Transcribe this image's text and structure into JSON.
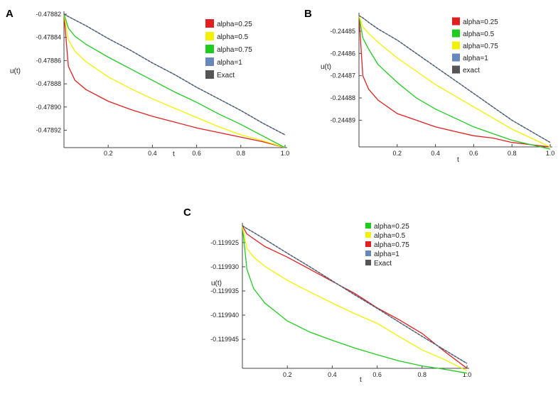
{
  "chart_data": [
    {
      "panel": "A",
      "type": "line",
      "title": "",
      "xlabel": "t",
      "ylabel": "u(t)",
      "xlim": [
        0,
        1.0
      ],
      "ylim": [
        -0.478935,
        -0.47882
      ],
      "x_ticks": [
        0.2,
        0.4,
        0.6,
        0.8,
        1.0
      ],
      "x_tick_labels": [
        "0.2",
        "0.4",
        "0.6",
        "0.8",
        "1.0"
      ],
      "y_ticks": [
        -0.47882,
        -0.47884,
        -0.47886,
        -0.47888,
        -0.4789,
        -0.47892
      ],
      "y_tick_labels": [
        "-0.47882",
        "-0.47884",
        "-0.47886",
        "-0.47888",
        "-0.47890",
        "-0.47892"
      ],
      "legend": {
        "position": "top-right"
      },
      "x": [
        0,
        0.02,
        0.05,
        0.1,
        0.2,
        0.3,
        0.4,
        0.5,
        0.6,
        0.7,
        0.8,
        0.9,
        1.0
      ],
      "series": [
        {
          "name": "alpha=0.25",
          "color": "#e02020",
          "values": [
            -0.47882,
            -0.478865,
            -0.478877,
            -0.478885,
            -0.478895,
            -0.478902,
            -0.478908,
            -0.478913,
            -0.478918,
            -0.478922,
            -0.478926,
            -0.47893,
            -0.478935
          ]
        },
        {
          "name": "alpha=0.5",
          "color": "#f2f200",
          "values": [
            -0.47882,
            -0.478842,
            -0.478852,
            -0.478861,
            -0.478874,
            -0.478884,
            -0.478893,
            -0.478901,
            -0.478909,
            -0.478917,
            -0.478924,
            -0.478929,
            -0.478935
          ]
        },
        {
          "name": "alpha=0.75",
          "color": "#20cc20",
          "values": [
            -0.47882,
            -0.478832,
            -0.478839,
            -0.478846,
            -0.478857,
            -0.478867,
            -0.478877,
            -0.478887,
            -0.478896,
            -0.478906,
            -0.478915,
            -0.478925,
            -0.478935
          ]
        },
        {
          "name": "alpha=1",
          "color": "#6688bb",
          "values": [
            -0.47882,
            -0.478822,
            -0.478825,
            -0.47883,
            -0.478841,
            -0.478851,
            -0.478862,
            -0.478872,
            -0.478883,
            -0.478893,
            -0.478903,
            -0.478914,
            -0.478924
          ]
        },
        {
          "name": "Exact",
          "color": "#555555",
          "values": [
            -0.47882,
            -0.478822,
            -0.478825,
            -0.47883,
            -0.478841,
            -0.478851,
            -0.478862,
            -0.478872,
            -0.478883,
            -0.478893,
            -0.478903,
            -0.478914,
            -0.478924
          ]
        }
      ]
    },
    {
      "panel": "B",
      "type": "line",
      "title": "",
      "xlabel": "t",
      "ylabel": "u(t)",
      "xlim": [
        0,
        1.0
      ],
      "ylim": [
        -0.244902,
        -0.244843
      ],
      "x_ticks": [
        0.2,
        0.4,
        0.6,
        0.8,
        1.0
      ],
      "x_tick_labels": [
        "0.2",
        "0.4",
        "0.6",
        "0.8",
        "1.0"
      ],
      "y_ticks": [
        -0.24485,
        -0.24486,
        -0.24487,
        -0.24488,
        -0.24489
      ],
      "y_tick_labels": [
        "-0.24485",
        "-0.24486",
        "-0.24487",
        "-0.24488",
        "-0.24489"
      ],
      "legend": {
        "position": "top-right"
      },
      "x": [
        0,
        0.02,
        0.05,
        0.1,
        0.2,
        0.3,
        0.4,
        0.5,
        0.6,
        0.7,
        0.8,
        0.9,
        1.0
      ],
      "series": [
        {
          "name": "alpha=0.25",
          "color": "#e02020",
          "values": [
            -0.244843,
            -0.24487,
            -0.244876,
            -0.244881,
            -0.244887,
            -0.24489,
            -0.244893,
            -0.244895,
            -0.244897,
            -0.244898,
            -0.2449,
            -0.244901,
            -0.244902
          ]
        },
        {
          "name": "alpha=0.5",
          "color": "#20cc20",
          "values": [
            -0.244843,
            -0.244853,
            -0.244858,
            -0.244865,
            -0.244873,
            -0.24488,
            -0.244885,
            -0.244889,
            -0.244893,
            -0.244896,
            -0.244899,
            -0.244901,
            -0.244903
          ]
        },
        {
          "name": "alpha=0.75",
          "color": "#f2f200",
          "values": [
            -0.244843,
            -0.244848,
            -0.244851,
            -0.244855,
            -0.244862,
            -0.244868,
            -0.244874,
            -0.244879,
            -0.244884,
            -0.244889,
            -0.244894,
            -0.244898,
            -0.244902
          ]
        },
        {
          "name": "alpha=1",
          "color": "#6688bb",
          "values": [
            -0.244843,
            -0.244844,
            -0.244846,
            -0.244849,
            -0.244854,
            -0.24486,
            -0.244866,
            -0.244872,
            -0.244878,
            -0.244884,
            -0.24489,
            -0.244895,
            -0.2449
          ]
        },
        {
          "name": "exact",
          "color": "#555555",
          "values": [
            -0.244843,
            -0.244844,
            -0.244846,
            -0.244849,
            -0.244854,
            -0.24486,
            -0.244866,
            -0.244872,
            -0.244878,
            -0.244884,
            -0.24489,
            -0.244895,
            -0.2449
          ]
        }
      ]
    },
    {
      "panel": "C",
      "type": "line",
      "title": "",
      "xlabel": "t",
      "ylabel": "u(t)",
      "xlim": [
        0,
        1.0
      ],
      "ylim": [
        -0.119951,
        -0.1199215
      ],
      "x_ticks": [
        0.2,
        0.4,
        0.6,
        0.8,
        1.0
      ],
      "x_tick_labels": [
        "0.2",
        "0.4",
        "0.6",
        "0.8",
        "1.0"
      ],
      "y_ticks": [
        -0.119925,
        -0.11993,
        -0.119935,
        -0.11994,
        -0.119945
      ],
      "y_tick_labels": [
        "-0.119925",
        "-0.119930",
        "-0.119935",
        "-0.119940",
        "-0.119945"
      ],
      "legend": {
        "position": "top-right"
      },
      "x": [
        0,
        0.02,
        0.05,
        0.1,
        0.2,
        0.3,
        0.4,
        0.5,
        0.6,
        0.7,
        0.8,
        0.9,
        1.0
      ],
      "series": [
        {
          "name": "alpha=0.25",
          "color": "#20cc20",
          "values": [
            -0.1199215,
            -0.1199305,
            -0.1199345,
            -0.1199375,
            -0.1199412,
            -0.1199435,
            -0.1199452,
            -0.1199468,
            -0.1199482,
            -0.1199495,
            -0.1199505,
            -0.1199512,
            -0.119952
          ]
        },
        {
          "name": "alpha=0.5",
          "color": "#f2f200",
          "values": [
            -0.1199215,
            -0.1199262,
            -0.119928,
            -0.1199299,
            -0.1199328,
            -0.1199352,
            -0.1199375,
            -0.1199397,
            -0.1199417,
            -0.1199445,
            -0.1199472,
            -0.1199492,
            -0.1199515
          ]
        },
        {
          "name": "alpha=0.75",
          "color": "#e02020",
          "values": [
            -0.1199215,
            -0.1199232,
            -0.1199242,
            -0.1199258,
            -0.119928,
            -0.1199305,
            -0.119933,
            -0.1199355,
            -0.1199385,
            -0.119941,
            -0.1199438,
            -0.1199475,
            -0.119951
          ]
        },
        {
          "name": "alpha=1",
          "color": "#6688bb",
          "values": [
            -0.1199215,
            -0.1199221,
            -0.1199229,
            -0.1199243,
            -0.1199272,
            -0.11993,
            -0.1199329,
            -0.1199358,
            -0.1199386,
            -0.1199415,
            -0.1199444,
            -0.1199472,
            -0.11995
          ]
        },
        {
          "name": "Exact",
          "color": "#555555",
          "values": [
            -0.1199215,
            -0.1199221,
            -0.1199229,
            -0.1199243,
            -0.1199272,
            -0.11993,
            -0.1199329,
            -0.1199358,
            -0.1199386,
            -0.1199415,
            -0.1199444,
            -0.1199472,
            -0.11995
          ]
        }
      ]
    }
  ]
}
